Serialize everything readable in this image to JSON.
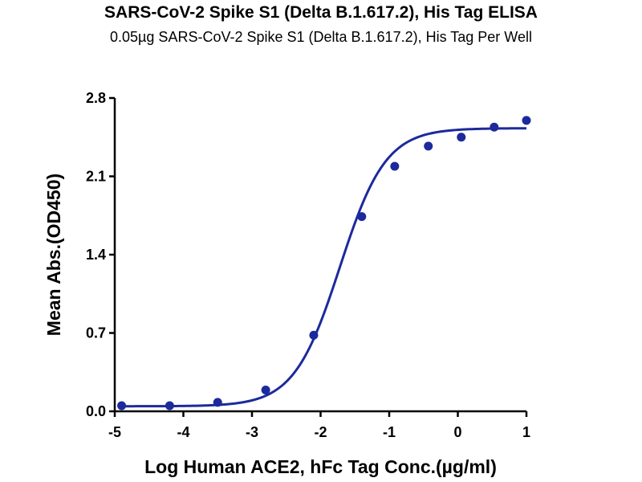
{
  "chart_data": {
    "type": "scatter",
    "title": "SARS-CoV-2 Spike S1 (Delta B.1.617.2), His Tag ELISA",
    "subtitle": "0.05µg SARS-CoV-2 Spike S1 (Delta B.1.617.2), His Tag Per Well",
    "xlabel": "Log Human ACE2, hFc Tag Conc.(µg/ml)",
    "ylabel": "Mean Abs.(OD450)",
    "xlim": [
      -5,
      1
    ],
    "ylim": [
      0.0,
      2.8
    ],
    "xticks": [
      -5,
      -4,
      -3,
      -2,
      -1,
      0,
      1
    ],
    "xtick_labels": [
      "-5",
      "-4",
      "-3",
      "-2",
      "-1",
      "0",
      "1"
    ],
    "yticks": [
      0.0,
      0.7,
      1.4,
      2.1,
      2.8
    ],
    "ytick_labels": [
      "0.0",
      "0.7",
      "1.4",
      "2.1",
      "2.8"
    ],
    "grid": false,
    "color": "#1c2a9c",
    "series": [
      {
        "points": [
          {
            "x": -4.9,
            "y": 0.05
          },
          {
            "x": -4.2,
            "y": 0.05
          },
          {
            "x": -3.5,
            "y": 0.08
          },
          {
            "x": -2.8,
            "y": 0.19
          },
          {
            "x": -2.1,
            "y": 0.68
          },
          {
            "x": -1.4,
            "y": 1.74
          },
          {
            "x": -0.92,
            "y": 2.19
          },
          {
            "x": -0.43,
            "y": 2.37
          },
          {
            "x": 0.05,
            "y": 2.45
          },
          {
            "x": 0.53,
            "y": 2.54
          },
          {
            "x": 1.0,
            "y": 2.6
          }
        ],
        "fit": {
          "model": "4PL",
          "bottom": 0.045,
          "top": 2.53,
          "log_ec50": -1.72,
          "hill_slope": 1.3
        }
      }
    ]
  }
}
